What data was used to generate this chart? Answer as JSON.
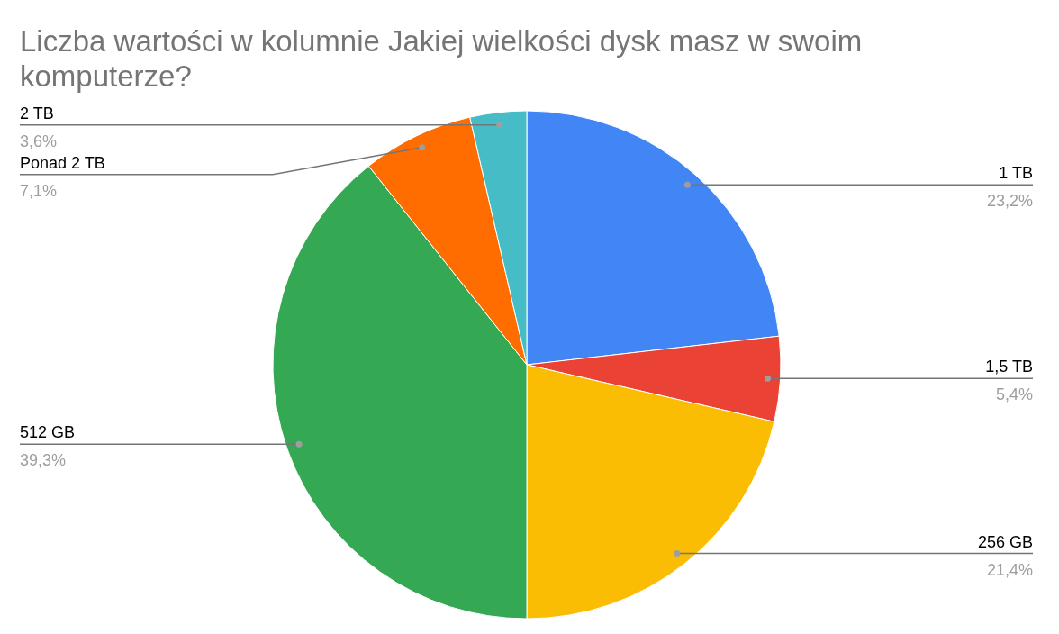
{
  "chart_data": {
    "type": "pie",
    "title": "Liczba wartości w kolumnie Jakiej wielkości dysk masz w swoim komputerze?",
    "categories": [
      "1 TB",
      "1,5 TB",
      "256 GB",
      "512 GB",
      "Ponad 2 TB",
      "2 TB"
    ],
    "values": [
      23.2,
      5.4,
      21.4,
      39.3,
      7.1,
      3.6
    ],
    "value_labels": [
      "23,2%",
      "5,4%",
      "21,4%",
      "39,3%",
      "7,1%",
      "3,6%"
    ],
    "colors": [
      "#4285f4",
      "#ea4335",
      "#fbbc04",
      "#34a853",
      "#ff6d01",
      "#46bdc6"
    ]
  }
}
